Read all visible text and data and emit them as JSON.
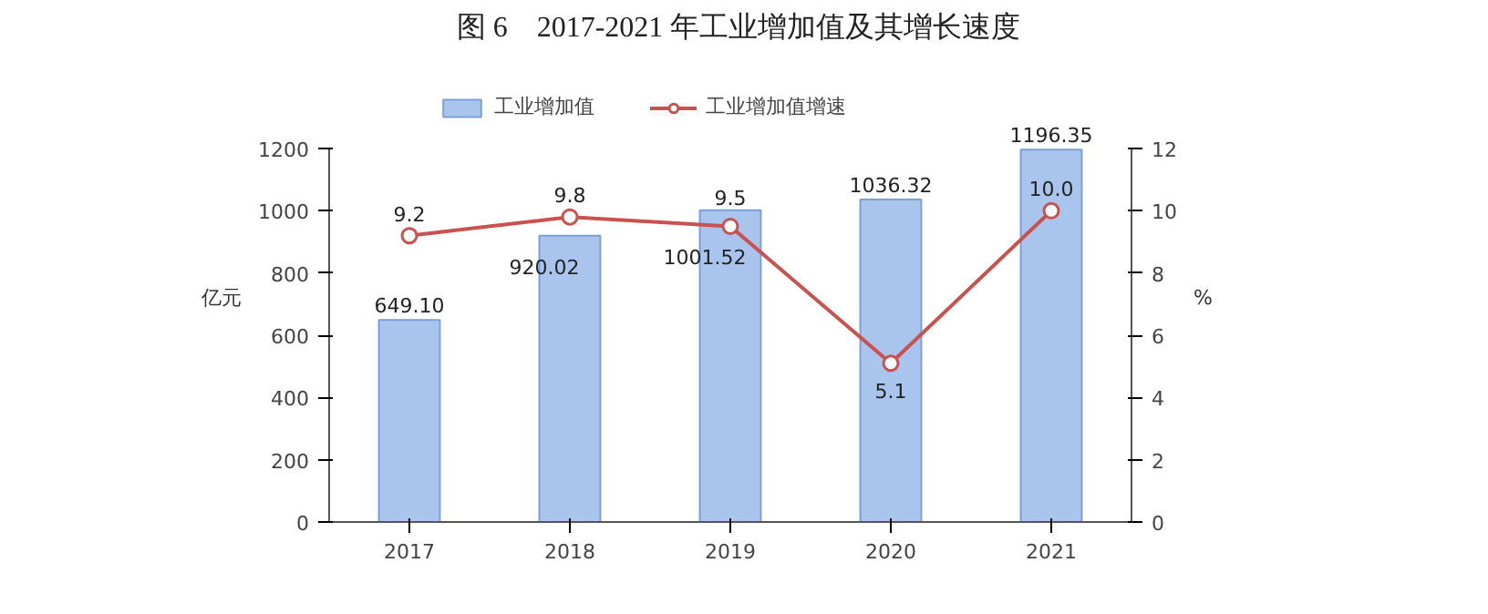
{
  "chart_data": {
    "type": "bar",
    "title": "图 6　2017-2021 年工业增加值及其增长速度",
    "ylabel": "亿元",
    "y2label": "%",
    "categories": [
      "2017",
      "2018",
      "2019",
      "2020",
      "2021"
    ],
    "series": [
      {
        "name": "工业增加值",
        "color": "#a9c5ee",
        "values": [
          649.1,
          920.02,
          1001.52,
          1036.32,
          1196.35
        ],
        "value_labels": [
          "649.10",
          "920.02",
          "1001.52",
          "1036.32",
          "1196.35"
        ]
      },
      {
        "name": "工业增加值增速",
        "type": "line",
        "axis": "y2",
        "color": "#c9524e",
        "marker": "circle",
        "values": [
          9.2,
          9.8,
          9.5,
          5.1,
          10.0
        ],
        "value_labels": [
          "9.2",
          "9.8",
          "9.5",
          "5.1",
          "10.0"
        ]
      }
    ],
    "ylim": [
      0,
      1200
    ],
    "yticks": [
      0,
      200,
      400,
      600,
      800,
      1000,
      1200
    ],
    "y2lim": [
      0,
      12
    ],
    "y2ticks": [
      0,
      2,
      4,
      6,
      8,
      10,
      12
    ],
    "data_labels": true,
    "grid": false,
    "legend": "top"
  }
}
